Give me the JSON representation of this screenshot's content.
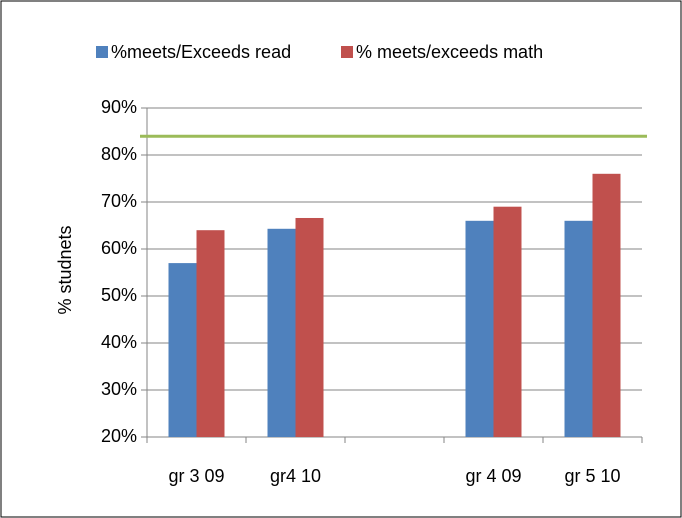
{
  "chart_data": {
    "type": "bar",
    "categories": [
      "gr 3 09",
      "gr4 10",
      null,
      "gr 4 09",
      "gr 5 10"
    ],
    "series": [
      {
        "name": "%meets/Exceeds read",
        "color": "#4f81bd",
        "values": [
          57,
          64.3,
          null,
          66,
          66
        ]
      },
      {
        "name": "% meets/exceeds math",
        "color": "#c0504d",
        "values": [
          64,
          66.6,
          null,
          69,
          76
        ]
      }
    ],
    "y_label": "% studnets",
    "ylim": [
      20,
      90
    ],
    "yticks": [
      {
        "value": 20,
        "label": "20%"
      },
      {
        "value": 30,
        "label": "30%"
      },
      {
        "value": 40,
        "label": "40%"
      },
      {
        "value": 50,
        "label": "50%"
      },
      {
        "value": 60,
        "label": "60%"
      },
      {
        "value": 70,
        "label": "70%"
      },
      {
        "value": 80,
        "label": "80%"
      },
      {
        "value": 90,
        "label": "90%"
      }
    ],
    "reference_line": {
      "value": 84,
      "color": "#9bbb59"
    },
    "grid": true,
    "legend": "top"
  }
}
